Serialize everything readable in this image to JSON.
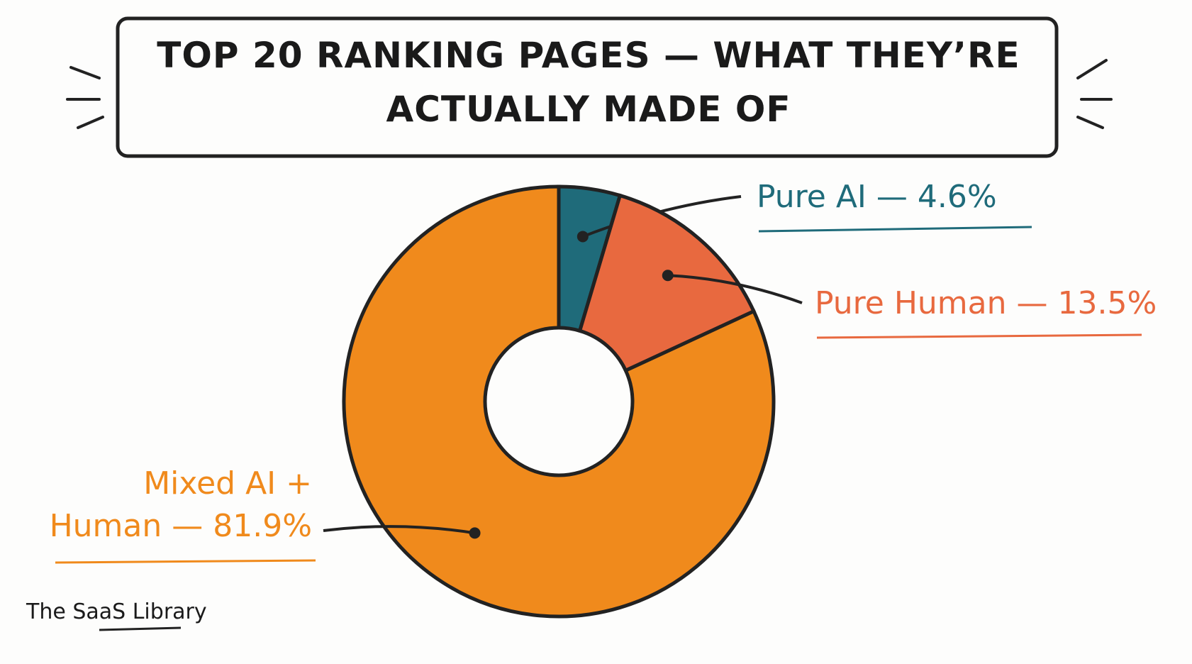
{
  "chart_data": {
    "type": "donut",
    "title": "TOP 20 RANKING PAGES — WHAT THEY’RE ACTUALLY MADE OF",
    "values": [
      4.6,
      13.5,
      81.9
    ],
    "value_labels": [
      "Pure AI — 4.6%",
      "Pure Human — 13.5%",
      "Mixed AI + Human — 81.9%"
    ],
    "colors": [
      "#1f6b7a",
      "#e8693f",
      "#f08a1c"
    ],
    "credit": "The SaaS Library"
  }
}
